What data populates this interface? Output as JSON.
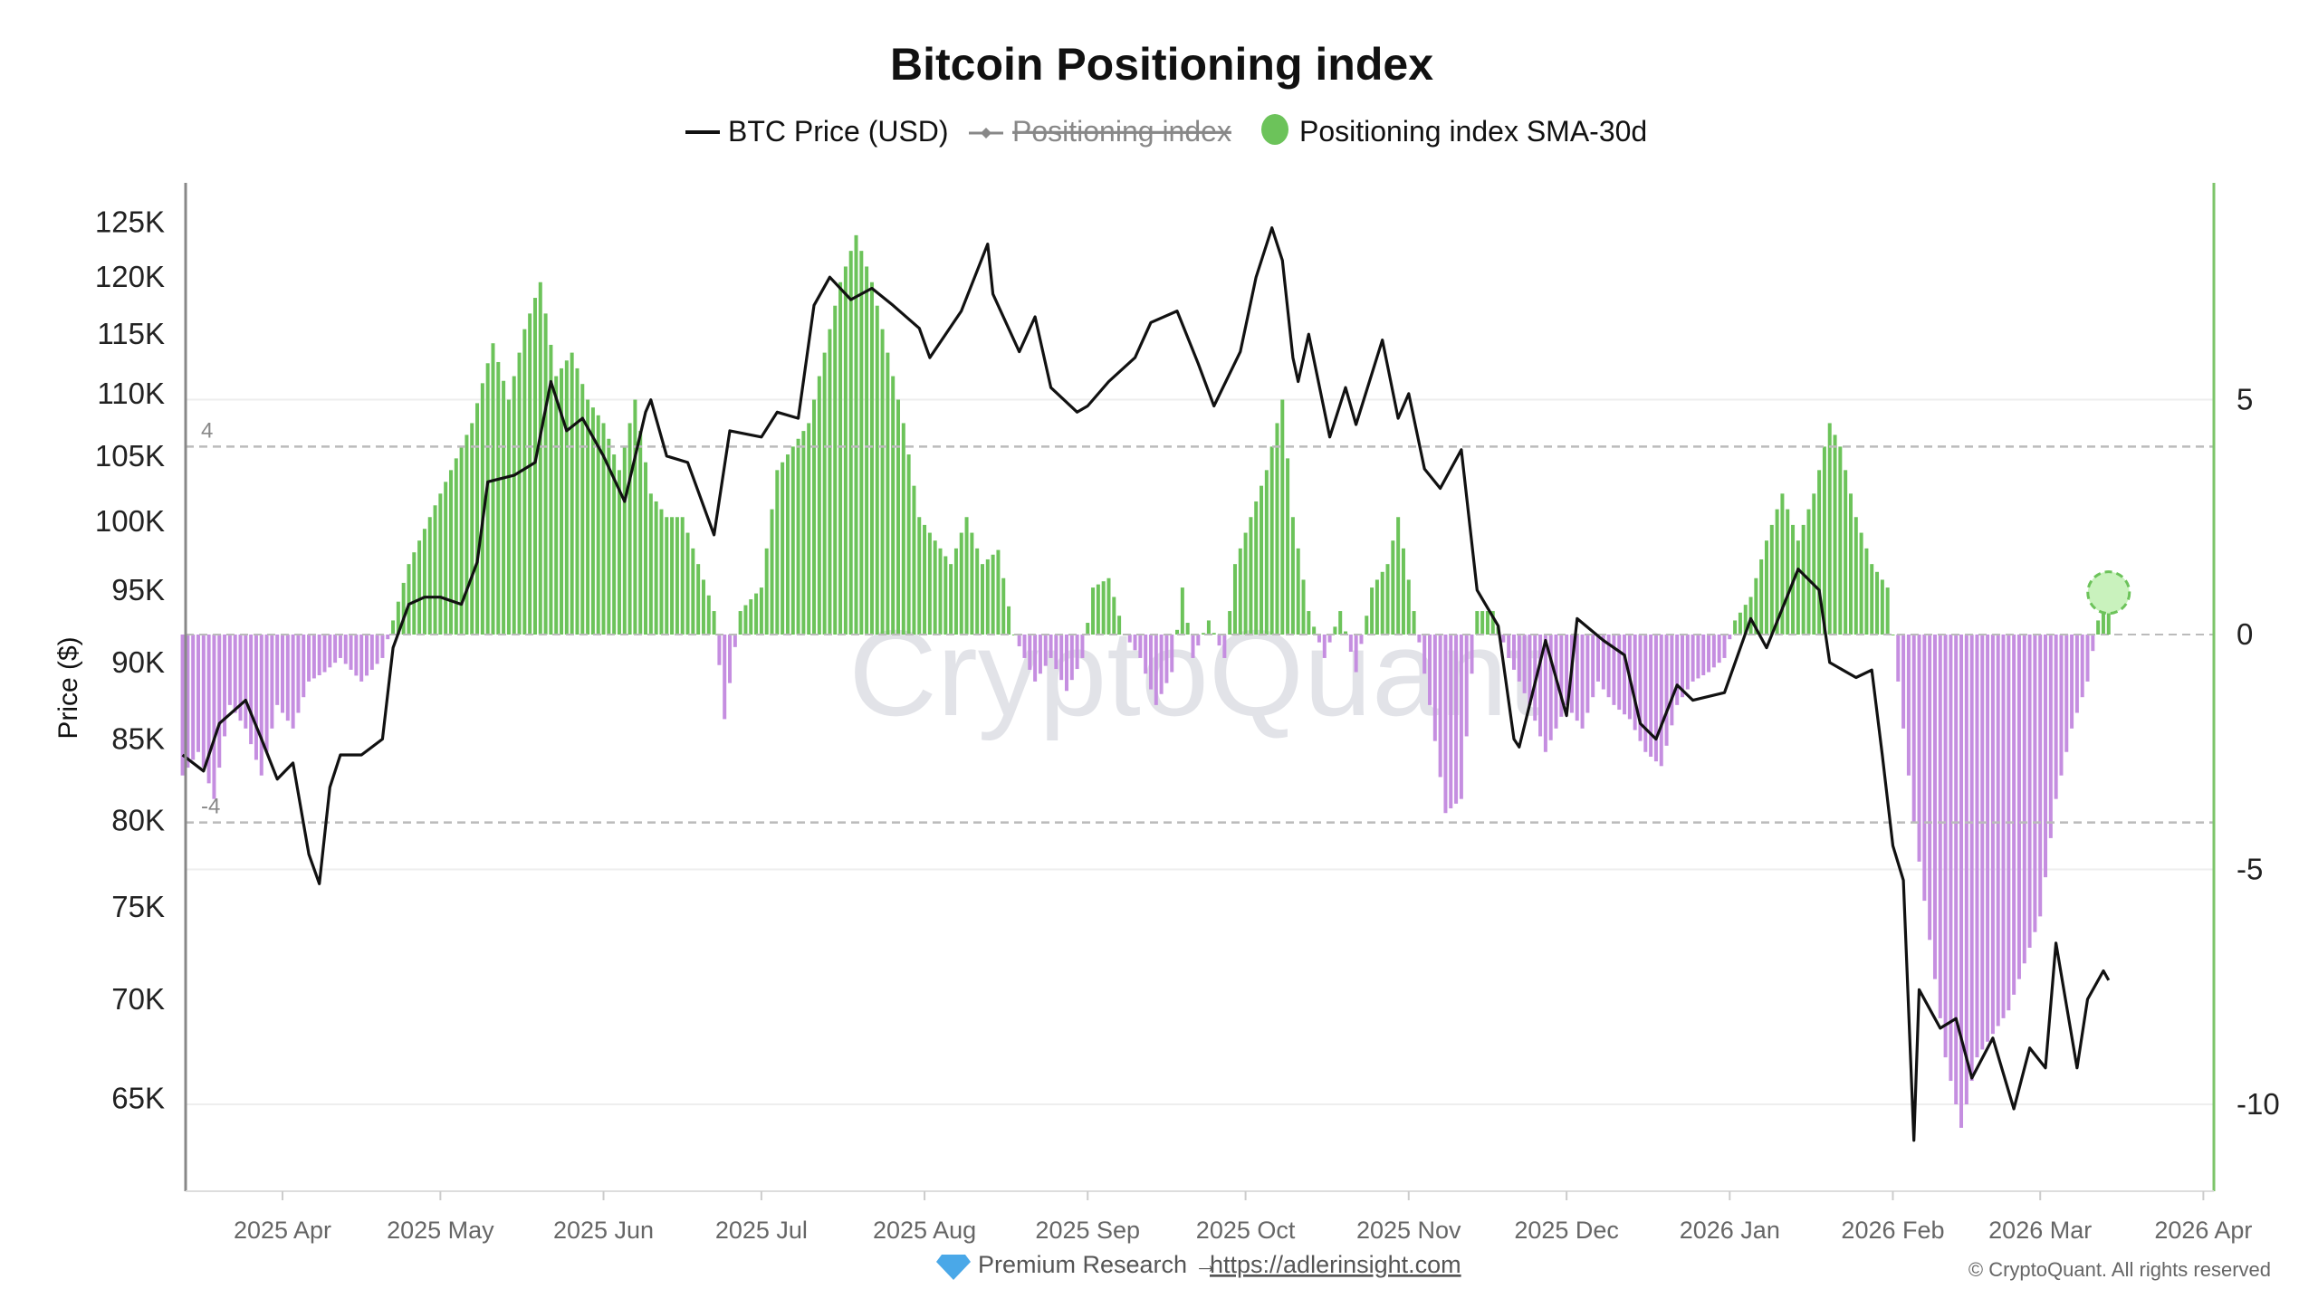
{
  "chart_data": {
    "type": "bar+line",
    "title": "Bitcoin Positioning index",
    "legend": [
      {
        "name": "BTC Price (USD)",
        "color": "#111111",
        "marker": "line",
        "hidden": false
      },
      {
        "name": "Positioning index",
        "color": "#888888",
        "marker": "line-diamond",
        "hidden": true
      },
      {
        "name": "Positioning index SMA-30d",
        "color": "#6cc35a",
        "marker": "circle",
        "hidden": false
      }
    ],
    "legend_position": "top-center",
    "ylabel_left": "Price ($)",
    "left_axis": {
      "scale": "log",
      "ticks": [
        "125K",
        "120K",
        "115K",
        "110K",
        "105K",
        "100K",
        "95K",
        "90K",
        "85K",
        "80K",
        "75K",
        "70K",
        "65K"
      ],
      "tick_values": [
        125000,
        120000,
        115000,
        110000,
        105000,
        100000,
        95000,
        90000,
        85000,
        80000,
        75000,
        70000,
        65000
      ]
    },
    "right_axis": {
      "ticks": [
        "5",
        "0",
        "-5",
        "-10"
      ],
      "tick_values": [
        5,
        0,
        -5,
        -10
      ],
      "range": [
        -11.9,
        9.6
      ],
      "reference_lines": [
        {
          "value": 4,
          "label": "4"
        },
        {
          "value": -4,
          "label": "-4"
        }
      ]
    },
    "x_axis": {
      "ticks": [
        "2025 Apr",
        "2025 May",
        "2025 Jun",
        "2025 Jul",
        "2025 Aug",
        "2025 Sep",
        "2025 Oct",
        "2025 Nov",
        "2025 Dec",
        "2026 Jan",
        "2026 Feb",
        "2026 Mar",
        "2026 Apr"
      ],
      "tick_dates": [
        "2025-04-01",
        "2025-05-01",
        "2025-06-01",
        "2025-07-01",
        "2025-08-01",
        "2025-09-01",
        "2025-10-01",
        "2025-11-01",
        "2025-12-01",
        "2026-01-01",
        "2026-02-01",
        "2026-03-01",
        "2026-04-01"
      ]
    },
    "colors": {
      "positive": "#6cc35a",
      "negative": "#c58ee0",
      "price": "#111111"
    },
    "price_series": [
      [
        "2025-03-13",
        84000
      ],
      [
        "2025-03-17",
        83000
      ],
      [
        "2025-03-20",
        86000
      ],
      [
        "2025-03-25",
        87500
      ],
      [
        "2025-03-28",
        85000
      ],
      [
        "2025-03-31",
        82500
      ],
      [
        "2025-04-03",
        83500
      ],
      [
        "2025-04-06",
        78000
      ],
      [
        "2025-04-08",
        76300
      ],
      [
        "2025-04-10",
        82000
      ],
      [
        "2025-04-12",
        84000
      ],
      [
        "2025-04-16",
        84000
      ],
      [
        "2025-04-20",
        85000
      ],
      [
        "2025-04-22",
        91000
      ],
      [
        "2025-04-25",
        94000
      ],
      [
        "2025-04-28",
        94500
      ],
      [
        "2025-05-01",
        94500
      ],
      [
        "2025-05-05",
        94000
      ],
      [
        "2025-05-08",
        97000
      ],
      [
        "2025-05-10",
        103000
      ],
      [
        "2025-05-15",
        103500
      ],
      [
        "2025-05-19",
        104500
      ],
      [
        "2025-05-22",
        111000
      ],
      [
        "2025-05-25",
        107000
      ],
      [
        "2025-05-28",
        108000
      ],
      [
        "2025-06-01",
        105000
      ],
      [
        "2025-06-05",
        101500
      ],
      [
        "2025-06-09",
        108500
      ],
      [
        "2025-06-10",
        109500
      ],
      [
        "2025-06-13",
        105000
      ],
      [
        "2025-06-17",
        104500
      ],
      [
        "2025-06-22",
        99000
      ],
      [
        "2025-06-25",
        107000
      ],
      [
        "2025-07-01",
        106500
      ],
      [
        "2025-07-04",
        108500
      ],
      [
        "2025-07-08",
        108000
      ],
      [
        "2025-07-11",
        117500
      ],
      [
        "2025-07-14",
        120000
      ],
      [
        "2025-07-18",
        118000
      ],
      [
        "2025-07-22",
        119000
      ],
      [
        "2025-07-26",
        117500
      ],
      [
        "2025-07-31",
        115500
      ],
      [
        "2025-08-02",
        113000
      ],
      [
        "2025-08-08",
        117000
      ],
      [
        "2025-08-13",
        123000
      ],
      [
        "2025-08-14",
        118500
      ],
      [
        "2025-08-19",
        113500
      ],
      [
        "2025-08-22",
        116500
      ],
      [
        "2025-08-25",
        110500
      ],
      [
        "2025-08-30",
        108500
      ],
      [
        "2025-09-01",
        109000
      ],
      [
        "2025-09-05",
        111000
      ],
      [
        "2025-09-10",
        113000
      ],
      [
        "2025-09-13",
        116000
      ],
      [
        "2025-09-18",
        117000
      ],
      [
        "2025-09-22",
        112500
      ],
      [
        "2025-09-25",
        109000
      ],
      [
        "2025-09-30",
        113500
      ],
      [
        "2025-10-03",
        120000
      ],
      [
        "2025-10-06",
        124500
      ],
      [
        "2025-10-08",
        121500
      ],
      [
        "2025-10-10",
        113000
      ],
      [
        "2025-10-11",
        111000
      ],
      [
        "2025-10-13",
        115000
      ],
      [
        "2025-10-17",
        106500
      ],
      [
        "2025-10-20",
        110500
      ],
      [
        "2025-10-22",
        107500
      ],
      [
        "2025-10-27",
        114500
      ],
      [
        "2025-10-30",
        108000
      ],
      [
        "2025-11-01",
        110000
      ],
      [
        "2025-11-04",
        104000
      ],
      [
        "2025-11-07",
        102500
      ],
      [
        "2025-11-11",
        105500
      ],
      [
        "2025-11-14",
        95000
      ],
      [
        "2025-11-18",
        92500
      ],
      [
        "2025-11-21",
        85000
      ],
      [
        "2025-11-22",
        84500
      ],
      [
        "2025-11-27",
        91500
      ],
      [
        "2025-12-01",
        86500
      ],
      [
        "2025-12-03",
        93000
      ],
      [
        "2025-12-08",
        91500
      ],
      [
        "2025-12-12",
        90500
      ],
      [
        "2025-12-15",
        86000
      ],
      [
        "2025-12-18",
        85000
      ],
      [
        "2025-12-22",
        88500
      ],
      [
        "2025-12-25",
        87500
      ],
      [
        "2025-12-31",
        88000
      ],
      [
        "2026-01-05",
        93000
      ],
      [
        "2026-01-08",
        91000
      ],
      [
        "2026-01-14",
        96500
      ],
      [
        "2026-01-18",
        95000
      ],
      [
        "2026-01-20",
        90000
      ],
      [
        "2026-01-25",
        89000
      ],
      [
        "2026-01-28",
        89500
      ],
      [
        "2026-01-30",
        84000
      ],
      [
        "2026-02-01",
        78500
      ],
      [
        "2026-02-03",
        76500
      ],
      [
        "2026-02-05",
        63000
      ],
      [
        "2026-02-06",
        70500
      ],
      [
        "2026-02-10",
        68500
      ],
      [
        "2026-02-13",
        69000
      ],
      [
        "2026-02-16",
        66000
      ],
      [
        "2026-02-20",
        68000
      ],
      [
        "2026-02-24",
        64500
      ],
      [
        "2026-02-27",
        67500
      ],
      [
        "2026-03-02",
        66500
      ],
      [
        "2026-03-04",
        73000
      ],
      [
        "2026-03-08",
        66500
      ],
      [
        "2026-03-10",
        70000
      ],
      [
        "2026-03-13",
        71500
      ],
      [
        "2026-03-14",
        71000
      ]
    ],
    "sma30_series": [
      [
        "2025-03-13",
        -3
      ],
      [
        "2025-03-16",
        -2.5
      ],
      [
        "2025-03-19",
        -3.5
      ],
      [
        "2025-03-22",
        -1.5
      ],
      [
        "2025-03-25",
        -2
      ],
      [
        "2025-03-28",
        -3
      ],
      [
        "2025-03-31",
        -1.5
      ],
      [
        "2025-04-03",
        -2
      ],
      [
        "2025-04-06",
        -1
      ],
      [
        "2025-04-09",
        -0.8
      ],
      [
        "2025-04-12",
        -0.5
      ],
      [
        "2025-04-16",
        -1
      ],
      [
        "2025-04-20",
        -0.5
      ],
      [
        "2025-04-22",
        0.3
      ],
      [
        "2025-04-25",
        1.5
      ],
      [
        "2025-04-29",
        2.5
      ],
      [
        "2025-05-03",
        3.5
      ],
      [
        "2025-05-07",
        4.5
      ],
      [
        "2025-05-11",
        6.2
      ],
      [
        "2025-05-14",
        5
      ],
      [
        "2025-05-17",
        6.5
      ],
      [
        "2025-05-20",
        7.5
      ],
      [
        "2025-05-23",
        5.5
      ],
      [
        "2025-05-26",
        6
      ],
      [
        "2025-05-29",
        5
      ],
      [
        "2025-06-01",
        4.5
      ],
      [
        "2025-06-04",
        3.5
      ],
      [
        "2025-06-07",
        5
      ],
      [
        "2025-06-10",
        3
      ],
      [
        "2025-06-13",
        2.5
      ],
      [
        "2025-06-16",
        2.5
      ],
      [
        "2025-06-19",
        1.5
      ],
      [
        "2025-06-22",
        0.5
      ],
      [
        "2025-06-24",
        -1.8
      ],
      [
        "2025-06-27",
        0.5
      ],
      [
        "2025-07-01",
        1
      ],
      [
        "2025-07-04",
        3.5
      ],
      [
        "2025-07-07",
        4
      ],
      [
        "2025-07-10",
        4.5
      ],
      [
        "2025-07-13",
        6
      ],
      [
        "2025-07-16",
        7.5
      ],
      [
        "2025-07-19",
        8.5
      ],
      [
        "2025-07-22",
        7.5
      ],
      [
        "2025-07-25",
        6
      ],
      [
        "2025-07-28",
        4.5
      ],
      [
        "2025-07-31",
        2.5
      ],
      [
        "2025-08-03",
        2
      ],
      [
        "2025-08-06",
        1.5
      ],
      [
        "2025-08-09",
        2.5
      ],
      [
        "2025-08-12",
        1.5
      ],
      [
        "2025-08-15",
        1.8
      ],
      [
        "2025-08-18",
        0
      ],
      [
        "2025-08-22",
        -1
      ],
      [
        "2025-08-25",
        -0.5
      ],
      [
        "2025-08-28",
        -1.2
      ],
      [
        "2025-08-31",
        -0.5
      ],
      [
        "2025-09-02",
        1
      ],
      [
        "2025-09-05",
        1.2
      ],
      [
        "2025-09-08",
        0
      ],
      [
        "2025-09-11",
        -0.5
      ],
      [
        "2025-09-14",
        -1.5
      ],
      [
        "2025-09-17",
        -0.8
      ],
      [
        "2025-09-19",
        1
      ],
      [
        "2025-09-21",
        -0.5
      ],
      [
        "2025-09-24",
        0.3
      ],
      [
        "2025-09-27",
        -0.5
      ],
      [
        "2025-09-29",
        1.5
      ],
      [
        "2025-10-02",
        2.5
      ],
      [
        "2025-10-05",
        3.5
      ],
      [
        "2025-10-08",
        5
      ],
      [
        "2025-10-10",
        2.5
      ],
      [
        "2025-10-13",
        0.5
      ],
      [
        "2025-10-16",
        -0.5
      ],
      [
        "2025-10-19",
        0.5
      ],
      [
        "2025-10-22",
        -0.8
      ],
      [
        "2025-10-25",
        1
      ],
      [
        "2025-10-28",
        1.5
      ],
      [
        "2025-10-30",
        2.5
      ],
      [
        "2025-11-02",
        0.5
      ],
      [
        "2025-11-05",
        -1.5
      ],
      [
        "2025-11-08",
        -3.8
      ],
      [
        "2025-11-11",
        -3.5
      ],
      [
        "2025-11-14",
        0.5
      ],
      [
        "2025-11-17",
        0.5
      ],
      [
        "2025-11-20",
        -0.5
      ],
      [
        "2025-11-24",
        -1.5
      ],
      [
        "2025-11-27",
        -2.5
      ],
      [
        "2025-12-01",
        -1.5
      ],
      [
        "2025-12-04",
        -2
      ],
      [
        "2025-12-07",
        -1
      ],
      [
        "2025-12-10",
        -1.5
      ],
      [
        "2025-12-13",
        -1.8
      ],
      [
        "2025-12-16",
        -2.5
      ],
      [
        "2025-12-19",
        -2.8
      ],
      [
        "2025-12-22",
        -1.5
      ],
      [
        "2025-12-25",
        -1
      ],
      [
        "2025-12-28",
        -0.8
      ],
      [
        "2025-12-31",
        -0.5
      ],
      [
        "2026-01-02",
        0.3
      ],
      [
        "2026-01-05",
        0.8
      ],
      [
        "2026-01-08",
        2
      ],
      [
        "2026-01-11",
        3
      ],
      [
        "2026-01-14",
        2
      ],
      [
        "2026-01-17",
        3
      ],
      [
        "2026-01-20",
        4.5
      ],
      [
        "2026-01-22",
        4
      ],
      [
        "2026-01-25",
        2.5
      ],
      [
        "2026-01-28",
        1.5
      ],
      [
        "2026-01-31",
        1
      ],
      [
        "2026-02-02",
        -1
      ],
      [
        "2026-02-05",
        -4
      ],
      [
        "2026-02-08",
        -6.5
      ],
      [
        "2026-02-11",
        -9
      ],
      [
        "2026-02-14",
        -10.5
      ],
      [
        "2026-02-17",
        -9
      ],
      [
        "2026-02-20",
        -8.5
      ],
      [
        "2026-02-23",
        -8
      ],
      [
        "2026-02-26",
        -7
      ],
      [
        "2026-03-01",
        -6
      ],
      [
        "2026-03-04",
        -3.5
      ],
      [
        "2026-03-07",
        -2
      ],
      [
        "2026-03-10",
        -1
      ],
      [
        "2026-03-12",
        0.3
      ],
      [
        "2026-03-14",
        0.7
      ]
    ],
    "latest_sma_highlight": [
      "2026-03-14",
      0.7
    ],
    "grid": true
  },
  "watermark": "CryptoQuant",
  "footer": {
    "premium_label": "Premium Research →",
    "link": "https://adlerinsight.com",
    "copyright": "© CryptoQuant. All rights reserved"
  }
}
